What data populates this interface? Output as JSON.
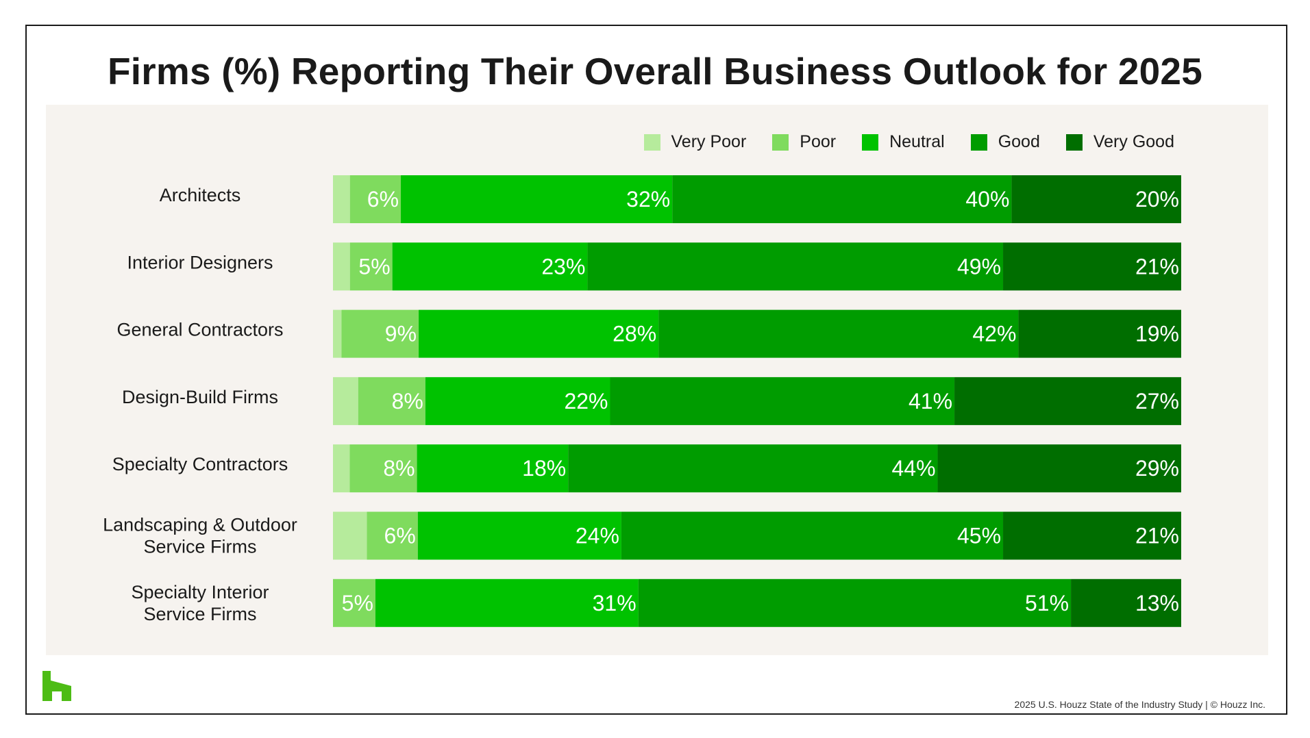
{
  "title": "Firms (%) Reporting Their Overall Business Outlook for 2025",
  "footer": "2025 U.S. Houzz State of the Industry Study  |  © Houzz Inc.",
  "logo_icon": "houzz-logo-icon",
  "colors": {
    "very_poor": "#b6eb9c",
    "poor": "#7fdb5e",
    "neutral": "#00c200",
    "good": "#009c00",
    "very_good": "#006e00",
    "panel": "#f6f3ef",
    "logo": "#4dbc15"
  },
  "chart_data": {
    "type": "bar",
    "orientation": "horizontal",
    "stacked": true,
    "title": "Firms (%) Reporting Their Overall Business Outlook for 2025",
    "legend_position": "top-right",
    "categories": [
      "Architects",
      "Interior Designers",
      "General Contractors",
      "Design-Build Firms",
      "Specialty Contractors",
      "Landscaping & Outdoor Service Firms",
      "Specialty Interior Service Firms"
    ],
    "category_lines": [
      [
        "Architects"
      ],
      [
        "Interior Designers"
      ],
      [
        "General Contractors"
      ],
      [
        "Design-Build Firms"
      ],
      [
        "Specialty Contractors"
      ],
      [
        "Landscaping & Outdoor",
        "Service Firms"
      ],
      [
        "Specialty Interior",
        "Service Firms"
      ]
    ],
    "series": [
      {
        "name": "Very Poor",
        "values": [
          2,
          2,
          1,
          3,
          2,
          4,
          0
        ]
      },
      {
        "name": "Poor",
        "values": [
          6,
          5,
          9,
          8,
          8,
          6,
          5
        ]
      },
      {
        "name": "Neutral",
        "values": [
          32,
          23,
          28,
          22,
          18,
          24,
          31
        ]
      },
      {
        "name": "Good",
        "values": [
          40,
          49,
          42,
          41,
          44,
          45,
          51
        ]
      },
      {
        "name": "Very Good",
        "values": [
          20,
          21,
          19,
          27,
          29,
          21,
          13
        ]
      }
    ],
    "labels": [
      [
        "",
        "6%",
        "32%",
        "40%",
        "20%"
      ],
      [
        "",
        "5%",
        "23%",
        "49%",
        "21%"
      ],
      [
        "",
        "9%",
        "28%",
        "42%",
        "19%"
      ],
      [
        "",
        "8%",
        "22%",
        "41%",
        "27%"
      ],
      [
        "",
        "8%",
        "18%",
        "44%",
        "29%"
      ],
      [
        "",
        "6%",
        "24%",
        "45%",
        "21%"
      ],
      [
        "",
        "5%",
        "31%",
        "51%",
        "13%"
      ]
    ]
  }
}
